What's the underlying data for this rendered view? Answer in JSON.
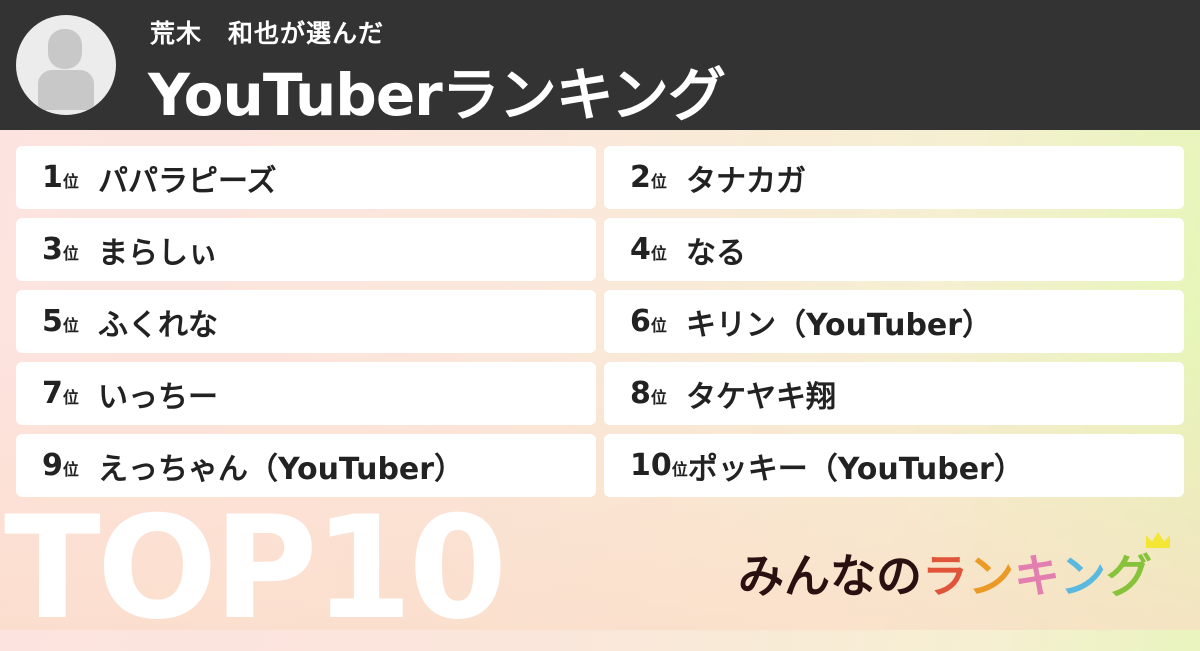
{
  "header": {
    "subtitle": "荒木　和也が選んだ",
    "title": "YouTuberランキング"
  },
  "rank_suffix": "位",
  "ranking": [
    {
      "rank": "1",
      "name": "パパラピーズ"
    },
    {
      "rank": "2",
      "name": "タナカガ"
    },
    {
      "rank": "3",
      "name": "まらしぃ"
    },
    {
      "rank": "4",
      "name": "なる"
    },
    {
      "rank": "5",
      "name": "ふくれな"
    },
    {
      "rank": "6",
      "name": "キリン（YouTuber）"
    },
    {
      "rank": "7",
      "name": "いっちー"
    },
    {
      "rank": "8",
      "name": "タケヤキ翔"
    },
    {
      "rank": "9",
      "name": "えっちゃん（YouTuber）"
    },
    {
      "rank": "10",
      "name": "ポッキー（YouTuber）"
    }
  ],
  "badge": "TOP10",
  "logo": {
    "prefix": "みんなの",
    "letters": [
      {
        "c": "ラ",
        "color": "#e0553a"
      },
      {
        "c": "ン",
        "color": "#eb9a25"
      },
      {
        "c": "キ",
        "color": "#e27eb0"
      },
      {
        "c": "ン",
        "color": "#5bb8de"
      },
      {
        "c": "グ",
        "color": "#86c23a"
      }
    ]
  }
}
